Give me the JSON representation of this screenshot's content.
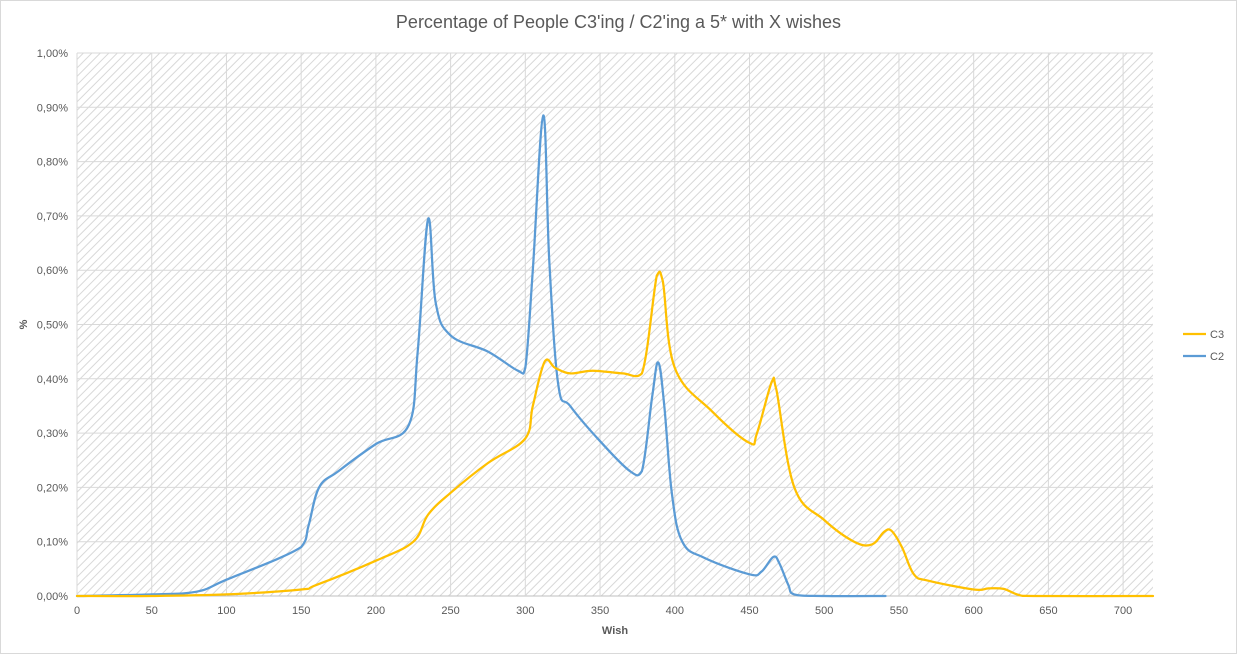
{
  "chart_data": {
    "type": "line",
    "title": "Percentage of People C3'ing / C2'ing a 5* with X wishes",
    "xlabel": "Wish",
    "ylabel": "%",
    "xlim": [
      0,
      720
    ],
    "ylim": [
      0,
      1.0
    ],
    "x_ticks": [
      0,
      50,
      100,
      150,
      200,
      250,
      300,
      350,
      400,
      450,
      500,
      550,
      600,
      650,
      700
    ],
    "y_ticks": [
      "0,00%",
      "0,10%",
      "0,20%",
      "0,30%",
      "0,40%",
      "0,50%",
      "0,60%",
      "0,70%",
      "0,80%",
      "0,90%",
      "1,00%"
    ],
    "y_tick_values": [
      0,
      0.1,
      0.2,
      0.3,
      0.4,
      0.5,
      0.6,
      0.7,
      0.8,
      0.9,
      1.0
    ],
    "grid": true,
    "legend_position": "right",
    "series": [
      {
        "name": "C3",
        "color": "#ffc000",
        "x": [
          0,
          50,
          100,
          150,
          160,
          200,
          225,
          235,
          250,
          275,
          300,
          305,
          313,
          320,
          330,
          345,
          365,
          378,
          388,
          392,
          400,
          425,
          450,
          455,
          465,
          468,
          480,
          500,
          520,
          532,
          540,
          545,
          552,
          560,
          570,
          600,
          610,
          620,
          630,
          640,
          720
        ],
        "values": [
          0,
          0,
          0.003,
          0.012,
          0.02,
          0.065,
          0.1,
          0.15,
          0.19,
          0.245,
          0.29,
          0.35,
          0.432,
          0.42,
          0.41,
          0.415,
          0.41,
          0.41,
          0.59,
          0.58,
          0.42,
          0.34,
          0.282,
          0.3,
          0.395,
          0.38,
          0.2,
          0.14,
          0.1,
          0.095,
          0.118,
          0.12,
          0.09,
          0.04,
          0.028,
          0.012,
          0.014,
          0.013,
          0.002,
          0,
          0
        ]
      },
      {
        "name": "C2",
        "color": "#5b9bd5",
        "x": [
          0,
          50,
          80,
          100,
          150,
          155,
          162,
          175,
          200,
          222,
          228,
          235,
          240,
          250,
          275,
          295,
          300,
          305,
          312,
          316,
          322,
          330,
          350,
          370,
          378,
          385,
          389,
          393,
          398,
          405,
          420,
          450,
          458,
          466,
          470,
          476,
          480,
          500,
          541
        ],
        "values": [
          0,
          0.003,
          0.008,
          0.03,
          0.09,
          0.13,
          0.2,
          0.23,
          0.28,
          0.315,
          0.45,
          0.695,
          0.54,
          0.48,
          0.45,
          0.415,
          0.42,
          0.6,
          0.885,
          0.62,
          0.39,
          0.35,
          0.285,
          0.23,
          0.23,
          0.37,
          0.43,
          0.35,
          0.19,
          0.1,
          0.07,
          0.04,
          0.045,
          0.072,
          0.06,
          0.02,
          0.003,
          0,
          0
        ]
      }
    ]
  }
}
